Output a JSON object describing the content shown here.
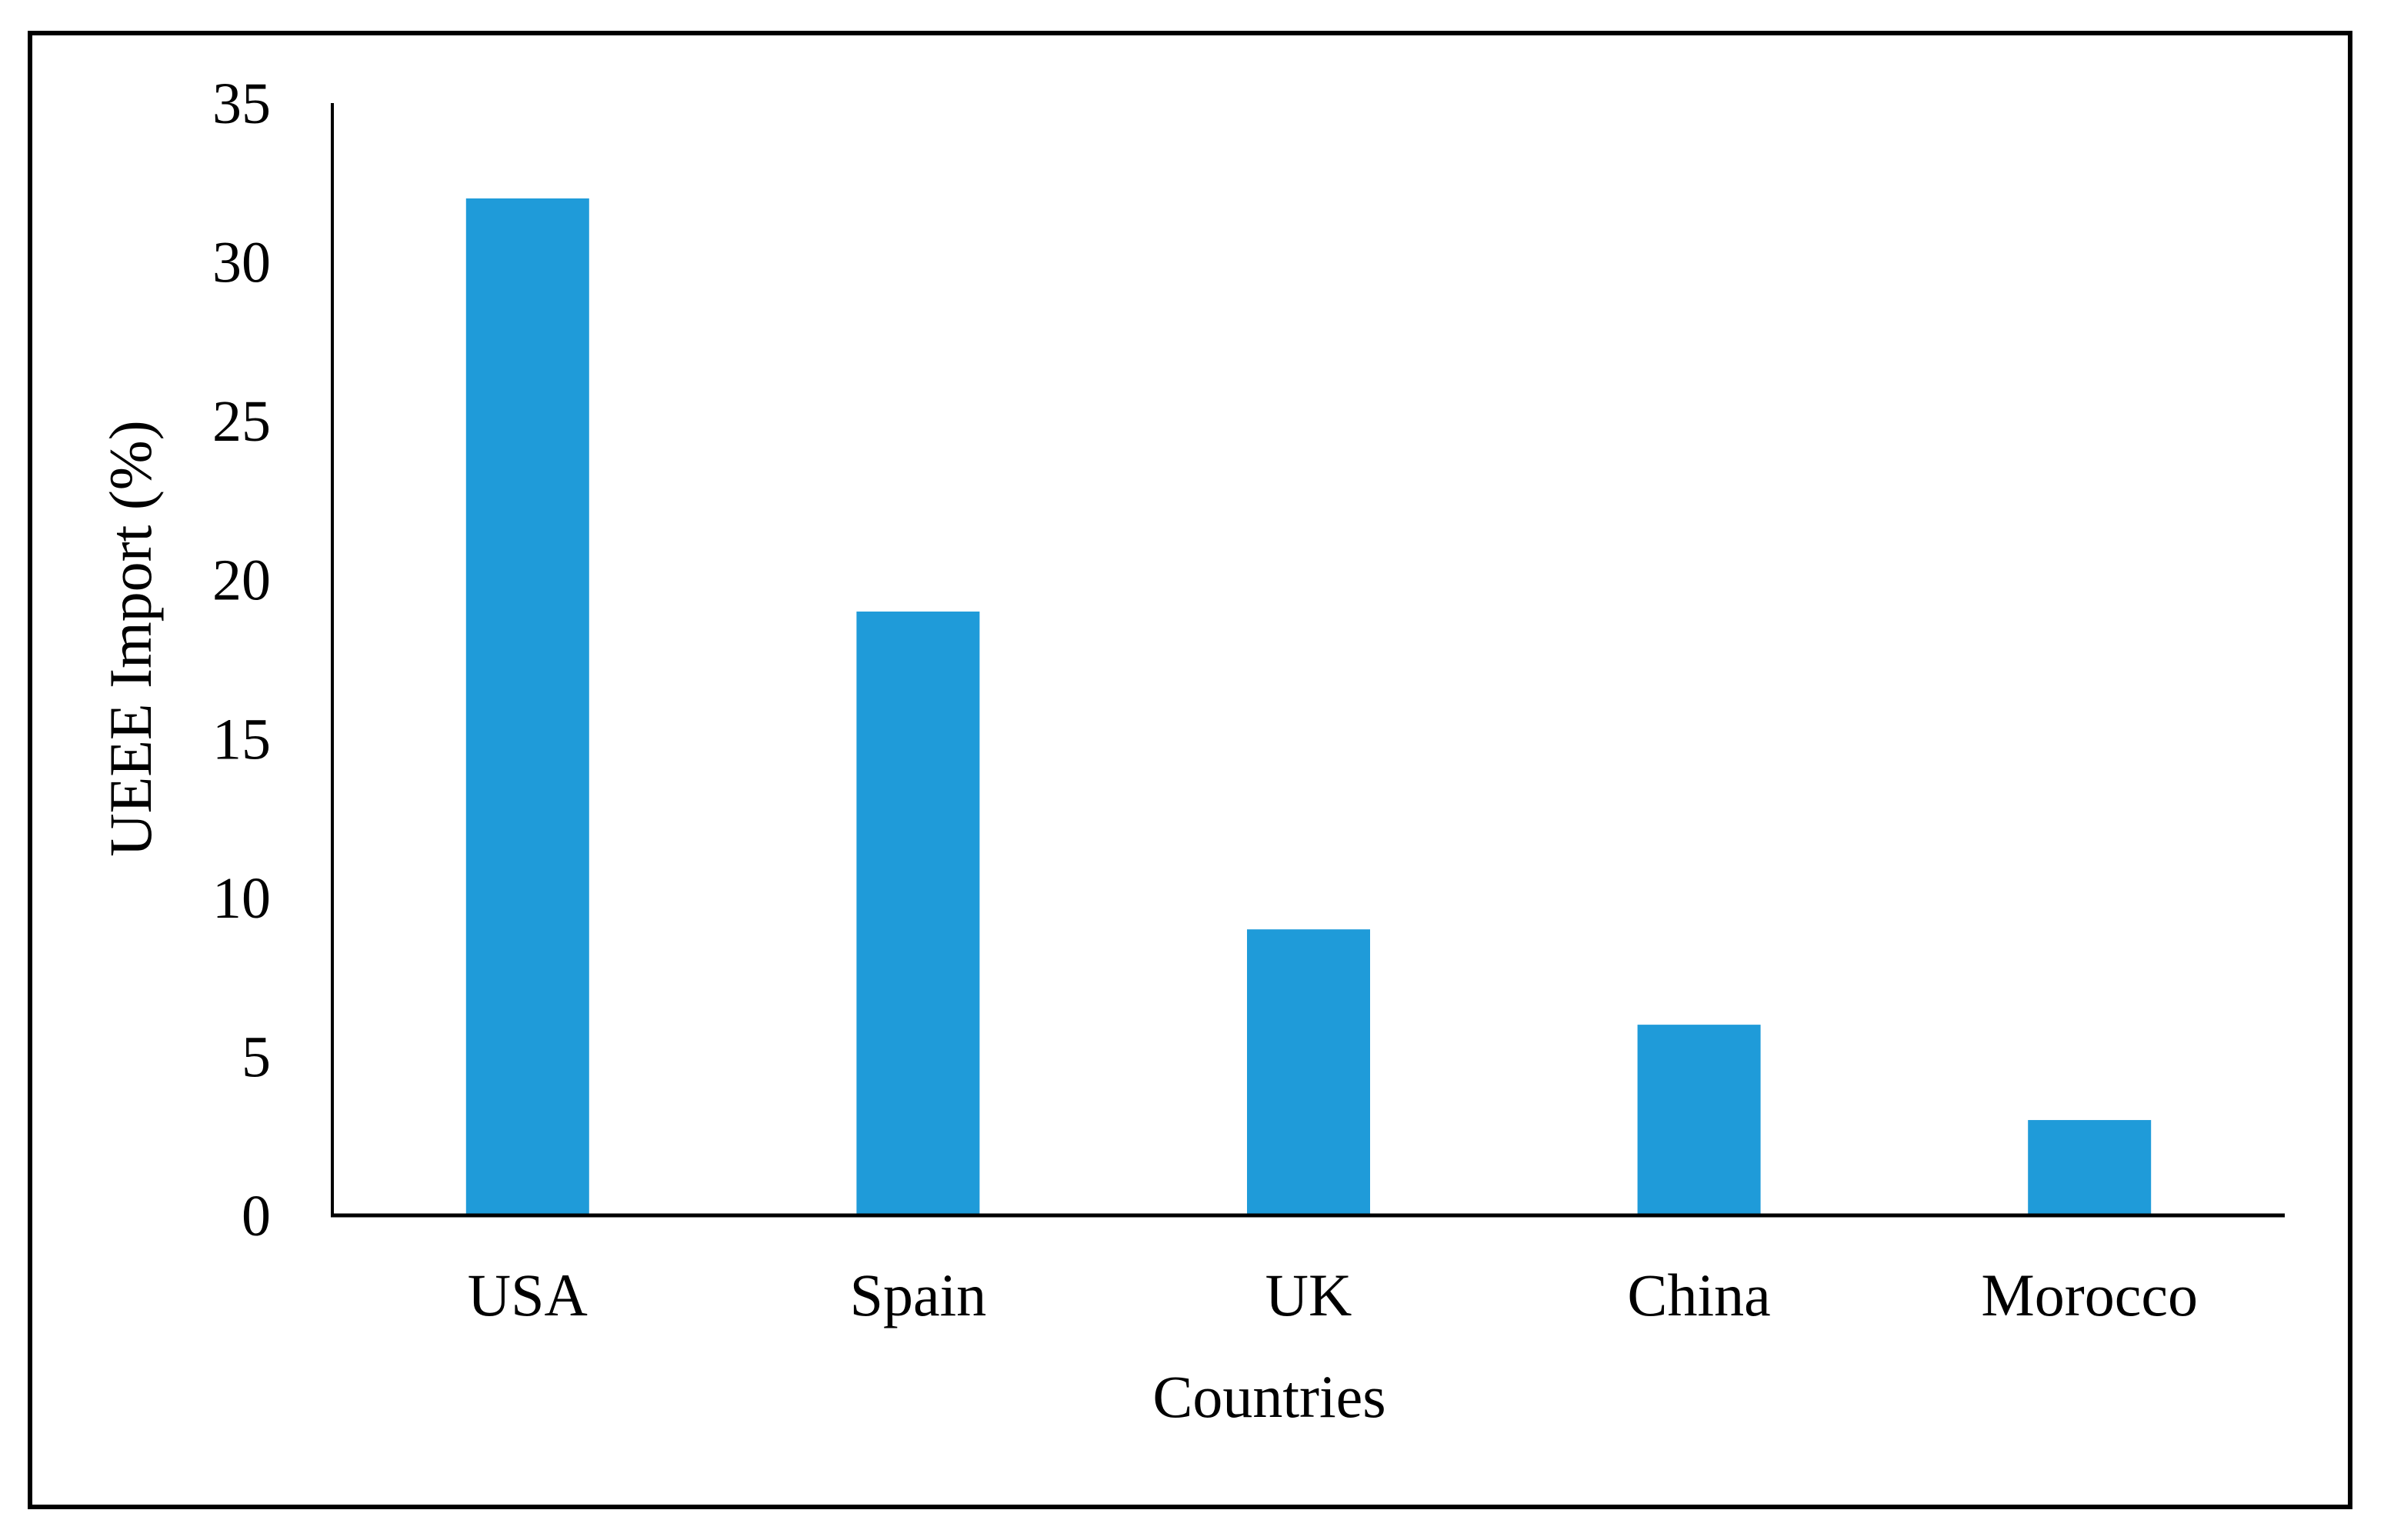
{
  "chart_data": {
    "type": "bar",
    "categories": [
      "USA",
      "Spain",
      "UK",
      "China",
      "Morocco"
    ],
    "values": [
      32,
      19,
      9,
      6,
      3
    ],
    "xlabel": "Countries",
    "ylabel": "UEEE Import (%)",
    "ylim": [
      0,
      35
    ],
    "yticks": [
      0,
      5,
      10,
      15,
      20,
      25,
      30,
      35
    ],
    "grid": false,
    "legend": "none",
    "bar_color": "#1f9bd9"
  }
}
